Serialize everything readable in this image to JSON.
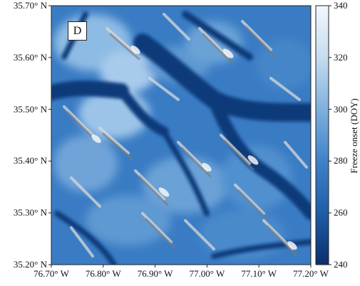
{
  "panel_label": "D",
  "lat_ticks": [
    "35.70° N",
    "35.60° N",
    "35.50° N",
    "35.40° N",
    "35.30° N",
    "35.20° N"
  ],
  "lon_ticks": [
    "76.70° W",
    "76.80° W",
    "76.90° W",
    "77.00° W",
    "77.10° W",
    "77.20° W"
  ],
  "colorbar": {
    "title": "Freeze onset (DOY)",
    "ticks": [
      "340",
      "320",
      "300",
      "280",
      "260",
      "240"
    ],
    "min": 240,
    "max": 340,
    "colors": [
      "#0c2f6b",
      "#1f5ea8",
      "#3f82c8",
      "#7fb0de",
      "#c6dcef",
      "#f3f7fc"
    ]
  }
}
